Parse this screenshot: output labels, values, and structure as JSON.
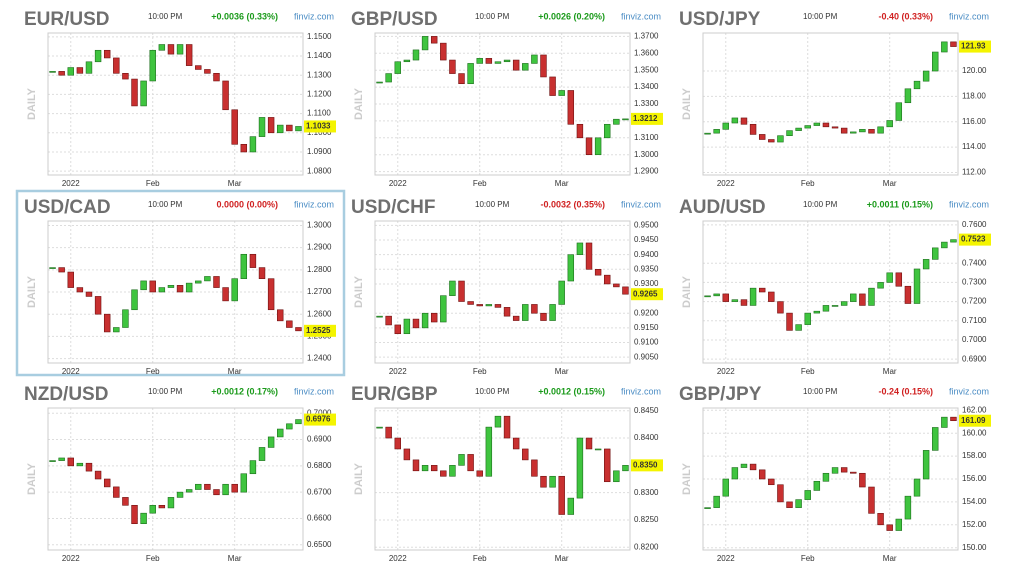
{
  "chart_data": [
    {
      "type": "candlestick",
      "title": "EUR/USD",
      "time": "10:00 PM",
      "change": "+0.0036 (0.33%)",
      "change_color": "#1a9a1a",
      "source": "finviz.com",
      "ylabel": "DAILY",
      "highlighted": false,
      "categories": [
        null,
        null,
        "2022",
        null,
        null,
        null,
        null,
        null,
        null,
        null,
        null,
        "Feb",
        null,
        null,
        null,
        null,
        null,
        null,
        null,
        null,
        "Mar",
        null,
        null,
        null,
        null,
        null,
        null,
        null
      ],
      "close": [
        1.132,
        1.13,
        1.134,
        1.131,
        1.137,
        1.143,
        1.139,
        1.131,
        1.128,
        1.114,
        1.127,
        1.143,
        1.146,
        1.141,
        1.146,
        1.135,
        1.133,
        1.131,
        1.127,
        1.112,
        1.094,
        1.09,
        1.098,
        1.108,
        1.1,
        1.104,
        1.101,
        1.1033
      ],
      "last_label": "1.1033",
      "ylim": [
        1.078,
        1.152
      ],
      "yticks": [
        {
          "value": 1.08,
          "label": "1.0800"
        },
        {
          "value": 1.09,
          "label": "1.0900"
        },
        {
          "value": 1.1,
          "label": "1.1000"
        },
        {
          "value": 1.11,
          "label": "1.1100"
        },
        {
          "value": 1.12,
          "label": "1.1200"
        },
        {
          "value": 1.13,
          "label": "1.1300"
        },
        {
          "value": 1.14,
          "label": "1.1400"
        },
        {
          "value": 1.15,
          "label": "1.1500"
        }
      ]
    },
    {
      "type": "candlestick",
      "title": "GBP/USD",
      "time": "10:00 PM",
      "change": "+0.0026 (0.20%)",
      "change_color": "#1a9a1a",
      "source": "finviz.com",
      "ylabel": "DAILY",
      "highlighted": false,
      "categories": [
        null,
        null,
        "2022",
        null,
        null,
        null,
        null,
        null,
        null,
        null,
        null,
        "Feb",
        null,
        null,
        null,
        null,
        null,
        null,
        null,
        null,
        "Mar",
        null,
        null,
        null,
        null,
        null,
        null,
        null
      ],
      "close": [
        1.343,
        1.348,
        1.355,
        1.356,
        1.362,
        1.37,
        1.366,
        1.356,
        1.348,
        1.342,
        1.354,
        1.357,
        1.354,
        1.355,
        1.356,
        1.35,
        1.354,
        1.359,
        1.346,
        1.335,
        1.338,
        1.318,
        1.31,
        1.3,
        1.31,
        1.318,
        1.321,
        1.3212
      ],
      "last_label": "1.3212",
      "ylim": [
        1.288,
        1.372
      ],
      "yticks": [
        {
          "value": 1.29,
          "label": "1.2900"
        },
        {
          "value": 1.3,
          "label": "1.3000"
        },
        {
          "value": 1.31,
          "label": "1.3100"
        },
        {
          "value": 1.32,
          "label": "1.3200"
        },
        {
          "value": 1.33,
          "label": "1.3300"
        },
        {
          "value": 1.34,
          "label": "1.3400"
        },
        {
          "value": 1.35,
          "label": "1.3500"
        },
        {
          "value": 1.36,
          "label": "1.3600"
        },
        {
          "value": 1.37,
          "label": "1.3700"
        }
      ]
    },
    {
      "type": "candlestick",
      "title": "USD/JPY",
      "time": "10:00 PM",
      "change": "-0.40 (0.33%)",
      "change_color": "#d02020",
      "source": "finviz.com",
      "ylabel": "DAILY",
      "highlighted": false,
      "categories": [
        null,
        null,
        "2022",
        null,
        null,
        null,
        null,
        null,
        null,
        null,
        null,
        "Feb",
        null,
        null,
        null,
        null,
        null,
        null,
        null,
        null,
        "Mar",
        null,
        null,
        null,
        null,
        null,
        null,
        null
      ],
      "close": [
        115.1,
        115.4,
        115.9,
        116.3,
        115.8,
        115.0,
        114.6,
        114.4,
        114.9,
        115.3,
        115.5,
        115.7,
        115.9,
        115.6,
        115.5,
        115.1,
        115.2,
        115.4,
        115.1,
        115.6,
        116.1,
        117.5,
        118.6,
        119.2,
        120.0,
        121.5,
        122.3,
        121.93
      ],
      "last_label": "121.93",
      "ylim": [
        111.8,
        123
      ],
      "yticks": [
        {
          "value": 112,
          "label": "112.00"
        },
        {
          "value": 114,
          "label": "114.00"
        },
        {
          "value": 116,
          "label": "116.00"
        },
        {
          "value": 118,
          "label": "118.00"
        },
        {
          "value": 120,
          "label": "120.00"
        }
      ]
    },
    {
      "type": "candlestick",
      "title": "USD/CAD",
      "time": "10:00 PM",
      "change": "0.0000 (0.00%)",
      "change_color": "#d02020",
      "source": "finviz.com",
      "ylabel": "DAILY",
      "highlighted": true,
      "categories": [
        null,
        null,
        "2022",
        null,
        null,
        null,
        null,
        null,
        null,
        null,
        null,
        "Feb",
        null,
        null,
        null,
        null,
        null,
        null,
        null,
        null,
        "Mar",
        null,
        null,
        null,
        null,
        null,
        null,
        null
      ],
      "close": [
        1.281,
        1.279,
        1.272,
        1.27,
        1.268,
        1.26,
        1.252,
        1.254,
        1.262,
        1.271,
        1.275,
        1.27,
        1.272,
        1.273,
        1.27,
        1.274,
        1.275,
        1.277,
        1.272,
        1.266,
        1.276,
        1.287,
        1.281,
        1.276,
        1.262,
        1.257,
        1.254,
        1.2525
      ],
      "last_label": "1.2525",
      "ylim": [
        1.238,
        1.302
      ],
      "yticks": [
        {
          "value": 1.24,
          "label": "1.2400"
        },
        {
          "value": 1.25,
          "label": "1.2500"
        },
        {
          "value": 1.26,
          "label": "1.2600"
        },
        {
          "value": 1.27,
          "label": "1.2700"
        },
        {
          "value": 1.28,
          "label": "1.2800"
        },
        {
          "value": 1.29,
          "label": "1.2900"
        },
        {
          "value": 1.3,
          "label": "1.3000"
        }
      ]
    },
    {
      "type": "candlestick",
      "title": "USD/CHF",
      "time": "10:00 PM",
      "change": "-0.0032 (0.35%)",
      "change_color": "#d02020",
      "source": "finviz.com",
      "ylabel": "DAILY",
      "highlighted": false,
      "categories": [
        null,
        null,
        "2022",
        null,
        null,
        null,
        null,
        null,
        null,
        null,
        null,
        "Feb",
        null,
        null,
        null,
        null,
        null,
        null,
        null,
        null,
        "Mar",
        null,
        null,
        null,
        null,
        null,
        null,
        null
      ],
      "close": [
        0.919,
        0.916,
        0.913,
        0.918,
        0.915,
        0.92,
        0.917,
        0.926,
        0.931,
        0.924,
        0.923,
        0.9225,
        0.923,
        0.922,
        0.919,
        0.9175,
        0.923,
        0.92,
        0.9175,
        0.923,
        0.931,
        0.94,
        0.944,
        0.935,
        0.933,
        0.93,
        0.929,
        0.9265
      ],
      "last_label": "0.9265",
      "ylim": [
        0.903,
        0.9515
      ],
      "yticks": [
        {
          "value": 0.905,
          "label": "0.9050"
        },
        {
          "value": 0.91,
          "label": "0.9100"
        },
        {
          "value": 0.915,
          "label": "0.9150"
        },
        {
          "value": 0.92,
          "label": "0.9200"
        },
        {
          "value": 0.93,
          "label": "0.9300"
        },
        {
          "value": 0.935,
          "label": "0.9350"
        },
        {
          "value": 0.94,
          "label": "0.9400"
        },
        {
          "value": 0.945,
          "label": "0.9450"
        },
        {
          "value": 0.95,
          "label": "0.9500"
        }
      ]
    },
    {
      "type": "candlestick",
      "title": "AUD/USD",
      "time": "10:00 PM",
      "change": "+0.0011 (0.15%)",
      "change_color": "#1a9a1a",
      "source": "finviz.com",
      "ylabel": "DAILY",
      "highlighted": false,
      "categories": [
        null,
        null,
        "2022",
        null,
        null,
        null,
        null,
        null,
        null,
        null,
        null,
        "Feb",
        null,
        null,
        null,
        null,
        null,
        null,
        null,
        null,
        "Mar",
        null,
        null,
        null,
        null,
        null,
        null,
        null
      ],
      "close": [
        0.723,
        0.724,
        0.72,
        0.721,
        0.718,
        0.727,
        0.725,
        0.72,
        0.714,
        0.705,
        0.708,
        0.714,
        0.715,
        0.718,
        0.718,
        0.72,
        0.724,
        0.718,
        0.727,
        0.73,
        0.735,
        0.728,
        0.719,
        0.737,
        0.742,
        0.748,
        0.751,
        0.7523
      ],
      "last_label": "0.7523",
      "ylim": [
        0.688,
        0.762
      ],
      "yticks": [
        {
          "value": 0.69,
          "label": "0.6900"
        },
        {
          "value": 0.7,
          "label": "0.7000"
        },
        {
          "value": 0.71,
          "label": "0.7100"
        },
        {
          "value": 0.72,
          "label": "0.7200"
        },
        {
          "value": 0.73,
          "label": "0.7300"
        },
        {
          "value": 0.74,
          "label": "0.7400"
        },
        {
          "value": 0.76,
          "label": "0.7600"
        }
      ]
    },
    {
      "type": "candlestick",
      "title": "NZD/USD",
      "time": "10:00 PM",
      "change": "+0.0012 (0.17%)",
      "change_color": "#1a9a1a",
      "source": "finviz.com",
      "ylabel": "DAILY",
      "highlighted": false,
      "categories": [
        null,
        null,
        "2022",
        null,
        null,
        null,
        null,
        null,
        null,
        null,
        null,
        "Feb",
        null,
        null,
        null,
        null,
        null,
        null,
        null,
        null,
        "Mar",
        null,
        null,
        null,
        null,
        null,
        null,
        null
      ],
      "close": [
        0.682,
        0.683,
        0.68,
        0.681,
        0.678,
        0.675,
        0.672,
        0.668,
        0.665,
        0.658,
        0.662,
        0.665,
        0.664,
        0.668,
        0.67,
        0.671,
        0.673,
        0.671,
        0.669,
        0.673,
        0.67,
        0.677,
        0.682,
        0.687,
        0.691,
        0.694,
        0.696,
        0.6976
      ],
      "last_label": "0.6976",
      "ylim": [
        0.648,
        0.702
      ],
      "yticks": [
        {
          "value": 0.65,
          "label": "0.6500"
        },
        {
          "value": 0.66,
          "label": "0.6600"
        },
        {
          "value": 0.67,
          "label": "0.6700"
        },
        {
          "value": 0.68,
          "label": "0.6800"
        },
        {
          "value": 0.69,
          "label": "0.6900"
        },
        {
          "value": 0.7,
          "label": "0.7000"
        }
      ]
    },
    {
      "type": "candlestick",
      "title": "EUR/GBP",
      "time": "10:00 PM",
      "change": "+0.0012 (0.15%)",
      "change_color": "#1a9a1a",
      "source": "finviz.com",
      "ylabel": "DAILY",
      "highlighted": false,
      "categories": [
        null,
        null,
        "2022",
        null,
        null,
        null,
        null,
        null,
        null,
        null,
        null,
        "Feb",
        null,
        null,
        null,
        null,
        null,
        null,
        null,
        null,
        "Mar",
        null,
        null,
        null,
        null,
        null,
        null,
        null
      ],
      "close": [
        0.842,
        0.84,
        0.838,
        0.836,
        0.834,
        0.835,
        0.834,
        0.833,
        0.835,
        0.837,
        0.834,
        0.833,
        0.842,
        0.844,
        0.84,
        0.838,
        0.836,
        0.833,
        0.831,
        0.833,
        0.826,
        0.829,
        0.84,
        0.838,
        0.838,
        0.832,
        0.834,
        0.835
      ],
      "last_label": "0.8350",
      "ylim": [
        0.8195,
        0.8455
      ],
      "yticks": [
        {
          "value": 0.82,
          "label": "0.8200"
        },
        {
          "value": 0.825,
          "label": "0.8250"
        },
        {
          "value": 0.83,
          "label": "0.8300"
        },
        {
          "value": 0.84,
          "label": "0.8400"
        },
        {
          "value": 0.845,
          "label": "0.8450"
        }
      ]
    },
    {
      "type": "candlestick",
      "title": "GBP/JPY",
      "time": "10:00 PM",
      "change": "-0.24 (0.15%)",
      "change_color": "#d02020",
      "source": "finviz.com",
      "ylabel": "DAILY",
      "highlighted": false,
      "categories": [
        null,
        null,
        "2022",
        null,
        null,
        null,
        null,
        null,
        null,
        null,
        null,
        "Feb",
        null,
        null,
        null,
        null,
        null,
        null,
        null,
        null,
        "Mar",
        null,
        null,
        null,
        null,
        null,
        null,
        null
      ],
      "close": [
        153.5,
        154.5,
        156.0,
        157.0,
        157.3,
        156.8,
        156.0,
        155.5,
        154.0,
        153.5,
        154.2,
        155.0,
        155.8,
        156.5,
        157.0,
        156.6,
        156.5,
        155.3,
        153.0,
        152.0,
        151.5,
        152.5,
        154.5,
        156.0,
        158.5,
        160.5,
        161.4,
        161.09
      ],
      "last_label": "161.09",
      "ylim": [
        149.8,
        162.2
      ],
      "yticks": [
        {
          "value": 150,
          "label": "150.00"
        },
        {
          "value": 152,
          "label": "152.00"
        },
        {
          "value": 154,
          "label": "154.00"
        },
        {
          "value": 156,
          "label": "156.00"
        },
        {
          "value": 158,
          "label": "158.00"
        },
        {
          "value": 160,
          "label": "160.00"
        },
        {
          "value": 162,
          "label": "162.00"
        }
      ]
    }
  ]
}
